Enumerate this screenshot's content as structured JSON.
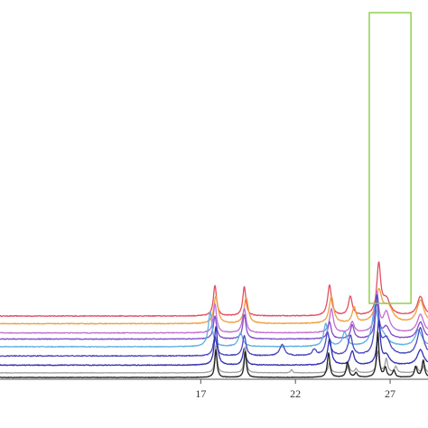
{
  "chart_data": {
    "type": "line",
    "title": "",
    "xlabel": "",
    "ylabel": "",
    "xlim": [
      6.4,
      29.0
    ],
    "xticks": [
      17,
      22,
      27
    ],
    "xtick_labels": [
      "17",
      "22",
      "27"
    ],
    "grid": false,
    "legend": "none",
    "highlight_region": {
      "x_start": 25.9,
      "x_end": 28.1,
      "color": "#8fd14f"
    },
    "series": [
      {
        "color": "#e05060",
        "baseline": 8.0,
        "noise": 0.05,
        "peaks": [
          [
            17.75,
            4.0,
            0.1
          ],
          [
            19.3,
            3.8,
            0.1
          ],
          [
            23.8,
            4.0,
            0.12
          ],
          [
            24.9,
            2.5,
            0.12
          ],
          [
            26.4,
            6.5,
            0.12
          ],
          [
            26.8,
            2.0,
            0.25
          ],
          [
            28.6,
            2.5,
            0.2
          ]
        ]
      },
      {
        "color": "#f0a040",
        "baseline": 7.0,
        "noise": 0.05,
        "peaks": [
          [
            17.8,
            3.6,
            0.13
          ],
          [
            19.4,
            3.4,
            0.13
          ],
          [
            23.9,
            3.5,
            0.14
          ],
          [
            25.1,
            2.0,
            0.12
          ],
          [
            26.4,
            4.0,
            0.2
          ],
          [
            26.9,
            2.0,
            0.3
          ],
          [
            28.6,
            3.0,
            0.22
          ]
        ]
      },
      {
        "color": "#c070d0",
        "baseline": 5.8,
        "noise": 0.05,
        "peaks": [
          [
            17.75,
            3.8,
            0.1
          ],
          [
            19.3,
            3.2,
            0.11
          ],
          [
            23.9,
            3.1,
            0.12
          ],
          [
            25.0,
            1.4,
            0.12
          ],
          [
            26.3,
            5.0,
            0.12
          ],
          [
            26.8,
            2.6,
            0.2
          ],
          [
            28.6,
            2.4,
            0.2
          ]
        ]
      },
      {
        "color": "#8050c8",
        "baseline": 5.0,
        "noise": 0.05,
        "peaks": [
          [
            17.75,
            3.0,
            0.1
          ],
          [
            19.3,
            3.2,
            0.1
          ],
          [
            23.8,
            2.2,
            0.11
          ],
          [
            25.0,
            1.8,
            0.11
          ],
          [
            26.3,
            4.6,
            0.12
          ],
          [
            26.8,
            1.5,
            0.2
          ],
          [
            28.6,
            2.2,
            0.2
          ]
        ]
      },
      {
        "color": "#60b0e0",
        "baseline": 4.0,
        "noise": 0.05,
        "peaks": [
          [
            17.5,
            4.6,
            0.12
          ],
          [
            19.1,
            1.8,
            0.14
          ],
          [
            23.6,
            3.0,
            0.13
          ],
          [
            24.6,
            1.8,
            0.14
          ],
          [
            26.2,
            5.0,
            0.17
          ],
          [
            26.6,
            1.3,
            0.3
          ],
          [
            28.5,
            2.1,
            0.22
          ]
        ]
      },
      {
        "color": "#4a4ac0",
        "baseline": 2.8,
        "noise": 0.06,
        "peaks": [
          [
            17.75,
            2.5,
            0.11
          ],
          [
            19.3,
            2.6,
            0.11
          ],
          [
            21.3,
            1.5,
            0.15
          ],
          [
            23.0,
            0.8,
            0.13
          ],
          [
            23.7,
            3.0,
            0.13
          ],
          [
            24.9,
            2.6,
            0.13
          ],
          [
            26.3,
            7.5,
            0.12
          ],
          [
            26.8,
            2.1,
            0.25
          ],
          [
            28.6,
            3.6,
            0.2
          ]
        ]
      },
      {
        "color": "#3030b0",
        "baseline": 1.6,
        "noise": 0.05,
        "peaks": [
          [
            17.8,
            5.0,
            0.1
          ],
          [
            19.3,
            2.2,
            0.1
          ],
          [
            23.8,
            3.4,
            0.12
          ],
          [
            25.0,
            1.8,
            0.12
          ],
          [
            26.4,
            5.5,
            0.1
          ],
          [
            26.8,
            1.2,
            0.2
          ],
          [
            28.6,
            2.0,
            0.2
          ]
        ]
      },
      {
        "color": "#a0a0a0",
        "baseline": 0.6,
        "noise": 0.03,
        "peaks": [
          [
            17.8,
            3.6,
            0.07
          ],
          [
            19.35,
            3.4,
            0.07
          ],
          [
            21.8,
            0.4,
            0.06
          ],
          [
            23.8,
            1.3,
            0.08
          ],
          [
            24.8,
            1.0,
            0.08
          ],
          [
            25.2,
            0.5,
            0.08
          ],
          [
            26.35,
            2.8,
            0.08
          ],
          [
            26.8,
            1.8,
            0.08
          ],
          [
            27.3,
            0.8,
            0.08
          ],
          [
            28.4,
            0.8,
            0.08
          ],
          [
            28.8,
            1.0,
            0.08
          ]
        ]
      },
      {
        "color": "#202020",
        "baseline": 0.0,
        "noise": 0.03,
        "peaks": [
          [
            17.8,
            3.6,
            0.07
          ],
          [
            19.35,
            3.4,
            0.07
          ],
          [
            23.75,
            3.2,
            0.08
          ],
          [
            24.75,
            2.0,
            0.08
          ],
          [
            25.2,
            0.6,
            0.08
          ],
          [
            26.35,
            6.0,
            0.07
          ],
          [
            26.75,
            1.2,
            0.08
          ],
          [
            27.2,
            0.9,
            0.08
          ],
          [
            28.35,
            1.4,
            0.08
          ],
          [
            28.75,
            2.2,
            0.08
          ]
        ]
      }
    ]
  }
}
